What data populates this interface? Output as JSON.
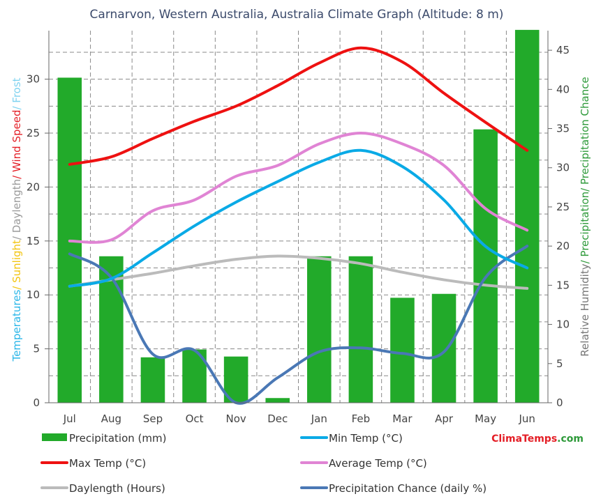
{
  "chart_data": {
    "type": "bar",
    "title": "Carnarvon, Western  Australia, Australia Climate Graph (Altitude: 8 m)",
    "categories": [
      "Jul",
      "Aug",
      "Sep",
      "Oct",
      "Nov",
      "Dec",
      "Jan",
      "Feb",
      "Mar",
      "Apr",
      "May",
      "Jun"
    ],
    "ylim_left": [
      0,
      34.5
    ],
    "ylim_right": [
      0,
      47.5
    ],
    "left_ticks": [
      0,
      5,
      10,
      15,
      20,
      25,
      30
    ],
    "right_ticks": [
      0,
      5,
      10,
      15,
      20,
      25,
      30,
      35,
      40,
      45
    ],
    "ylabel_left": [
      {
        "text": "Temperatures",
        "color": "#29b6e8"
      },
      {
        "text": "/ Sunlight",
        "color": "#f2c40f"
      },
      {
        "text": "/ Daylength",
        "color": "#9a9a9a"
      },
      {
        "text": "/ Wind Speed",
        "color": "#e41e26"
      },
      {
        "text": "/ Frost",
        "color": "#7fd3f0"
      }
    ],
    "ylabel_right": [
      {
        "text": "Relative Humidity",
        "color": "#777777"
      },
      {
        "text": "/ Precipitation",
        "color": "#2e9a3a"
      },
      {
        "text": "/ Precipitation Chance",
        "color": "#2e9a3a"
      }
    ],
    "series": [
      {
        "name": "Precipitation (mm)",
        "kind": "bar",
        "axis": "right",
        "color": "#22aa2a",
        "values": [
          41.5,
          18.7,
          5.8,
          6.8,
          5.9,
          0.6,
          18.7,
          18.7,
          13.4,
          13.9,
          34.9,
          47.6
        ]
      },
      {
        "name": "Min Temp (°C)",
        "kind": "line",
        "axis": "left",
        "color": "#0aaae6",
        "values": [
          10.8,
          11.5,
          13.9,
          16.4,
          18.6,
          20.5,
          22.3,
          23.4,
          21.9,
          18.8,
          14.5,
          12.5
        ]
      },
      {
        "name": "Max Temp (°C)",
        "kind": "line",
        "axis": "left",
        "color": "#ee1111",
        "values": [
          22.1,
          22.8,
          24.5,
          26.1,
          27.5,
          29.4,
          31.5,
          32.9,
          31.6,
          28.7,
          26.0,
          23.4
        ]
      },
      {
        "name": "Average Temp (°C)",
        "kind": "line",
        "axis": "left",
        "color": "#e084d4",
        "values": [
          15.0,
          15.1,
          17.8,
          18.8,
          21.0,
          22.0,
          24.0,
          25.0,
          24.0,
          22.0,
          18.0,
          16.0
        ]
      },
      {
        "name": "Daylength (Hours)",
        "kind": "line",
        "axis": "left",
        "color": "#bbbbbb",
        "values": [
          10.8,
          11.4,
          12.0,
          12.7,
          13.3,
          13.6,
          13.4,
          12.9,
          12.1,
          11.4,
          10.9,
          10.6
        ]
      },
      {
        "name": "Precipitation Chance (daily %)",
        "kind": "line",
        "axis": "right",
        "color": "#4a78b5",
        "values": [
          19.0,
          16.0,
          6.2,
          6.7,
          0.0,
          3.2,
          6.5,
          7.0,
          6.3,
          6.5,
          16.0,
          20.0
        ]
      }
    ],
    "legend": [
      {
        "label": "Precipitation (mm)",
        "color": "#22aa2a",
        "swatch": "bar"
      },
      {
        "label": "Min Temp (°C)",
        "color": "#0aaae6",
        "swatch": "line"
      },
      {
        "label": "Max Temp (°C)",
        "color": "#ee1111",
        "swatch": "line"
      },
      {
        "label": "Average Temp (°C)",
        "color": "#e084d4",
        "swatch": "line"
      },
      {
        "label": "Daylength (Hours)",
        "color": "#bbbbbb",
        "swatch": "line"
      },
      {
        "label": "Precipitation Chance (daily %)",
        "color": "#4a78b5",
        "swatch": "line"
      }
    ],
    "brand": {
      "part1": "Clima",
      "part2": "Temps",
      "part3": ".com"
    },
    "grid": true
  }
}
